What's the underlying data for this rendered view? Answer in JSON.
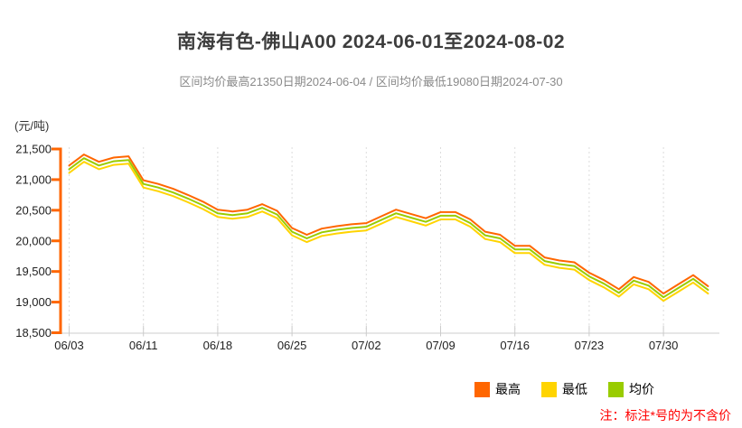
{
  "title": "南海有色-佛山A00 2024-06-01至2024-08-02",
  "subtitle": "区间均价最高21350日期2024-06-04 / 区间均价最低19080日期2024-07-30",
  "unit_label": "(元/吨)",
  "note": "注：标注*号的为不含价",
  "colors": {
    "high": "#FF6600",
    "low": "#FFD400",
    "avg": "#99CC00",
    "y_axis": "#FF6600",
    "x_axis": "#CCCCCC",
    "grid": "#DDDDDD",
    "note": "#FF0000"
  },
  "legend": [
    {
      "label": "最高",
      "color": "#FF6600"
    },
    {
      "label": "最低",
      "color": "#FFD400"
    },
    {
      "label": "均价",
      "color": "#99CC00"
    }
  ],
  "chart_data": {
    "type": "line",
    "title": "南海有色-佛山A00 2024-06-01至2024-08-02",
    "ylabel": "元/吨",
    "ylim": [
      18500,
      21500
    ],
    "grid": "vertical-dashed",
    "legend_position": "bottom-right",
    "x": [
      "06/03",
      "06/04",
      "06/05",
      "06/06",
      "06/07",
      "06/11",
      "06/12",
      "06/13",
      "06/14",
      "06/17",
      "06/18",
      "06/19",
      "06/20",
      "06/21",
      "06/24",
      "06/25",
      "06/26",
      "06/27",
      "06/28",
      "07/01",
      "07/02",
      "07/03",
      "07/04",
      "07/05",
      "07/08",
      "07/09",
      "07/10",
      "07/11",
      "07/12",
      "07/15",
      "07/16",
      "07/17",
      "07/18",
      "07/19",
      "07/22",
      "07/23",
      "07/24",
      "07/25",
      "07/26",
      "07/29",
      "07/30",
      "07/31",
      "08/01",
      "08/02"
    ],
    "x_ticks": [
      {
        "index": 0,
        "label": "06/03"
      },
      {
        "index": 5,
        "label": "06/11"
      },
      {
        "index": 10,
        "label": "06/18"
      },
      {
        "index": 15,
        "label": "06/25"
      },
      {
        "index": 20,
        "label": "07/02"
      },
      {
        "index": 25,
        "label": "07/09"
      },
      {
        "index": 30,
        "label": "07/16"
      },
      {
        "index": 35,
        "label": "07/23"
      },
      {
        "index": 40,
        "label": "07/30"
      }
    ],
    "y_ticks": [
      {
        "value": 21500,
        "label": "21,500"
      },
      {
        "value": 21000,
        "label": "21,000"
      },
      {
        "value": 20500,
        "label": "20,500"
      },
      {
        "value": 20000,
        "label": "20,000"
      },
      {
        "value": 19500,
        "label": "19,500"
      },
      {
        "value": 19000,
        "label": "19,000"
      },
      {
        "value": 18500,
        "label": "18,500"
      }
    ],
    "series": [
      {
        "name": "最高",
        "color": "#FF6600",
        "values": [
          21230,
          21410,
          21290,
          21360,
          21380,
          20990,
          20930,
          20850,
          20750,
          20640,
          20510,
          20480,
          20510,
          20600,
          20490,
          20210,
          20100,
          20200,
          20240,
          20270,
          20290,
          20400,
          20510,
          20440,
          20370,
          20470,
          20470,
          20350,
          20150,
          20100,
          19920,
          19920,
          19730,
          19680,
          19650,
          19480,
          19360,
          19210,
          19410,
          19330,
          19140,
          19290,
          19440,
          19260
        ]
      },
      {
        "name": "最低",
        "color": "#FFD400",
        "values": [
          21110,
          21290,
          21170,
          21240,
          21260,
          20870,
          20810,
          20730,
          20630,
          20520,
          20390,
          20360,
          20390,
          20480,
          20370,
          20090,
          19980,
          20080,
          20120,
          20150,
          20170,
          20280,
          20390,
          20320,
          20250,
          20350,
          20350,
          20230,
          20030,
          19980,
          19800,
          19800,
          19610,
          19560,
          19530,
          19360,
          19240,
          19090,
          19290,
          19210,
          19020,
          19170,
          19320,
          19140
        ]
      },
      {
        "name": "均价",
        "color": "#99CC00",
        "values": [
          21170,
          21350,
          21230,
          21300,
          21320,
          20930,
          20870,
          20790,
          20690,
          20580,
          20450,
          20420,
          20450,
          20540,
          20430,
          20150,
          20040,
          20140,
          20180,
          20210,
          20230,
          20340,
          20450,
          20380,
          20310,
          20410,
          20410,
          20290,
          20090,
          20040,
          19860,
          19860,
          19670,
          19620,
          19590,
          19420,
          19300,
          19150,
          19350,
          19270,
          19080,
          19230,
          19380,
          19200
        ]
      }
    ],
    "annotations": {
      "max_avg": {
        "value": 21350,
        "date": "2024-06-04"
      },
      "min_avg": {
        "value": 19080,
        "date": "2024-07-30"
      }
    }
  }
}
